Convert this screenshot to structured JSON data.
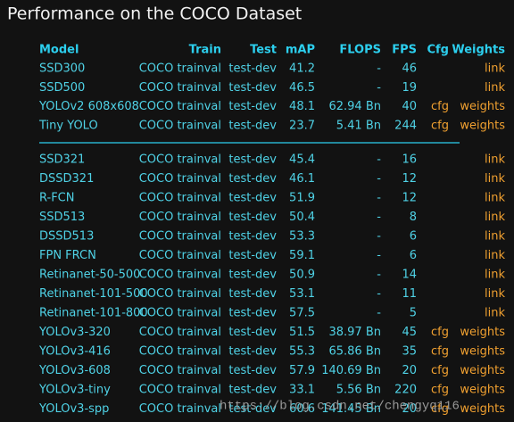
{
  "title": "Performance on the COCO Dataset",
  "table": {
    "header": [
      "Model",
      "Train",
      "Test",
      "mAP",
      "FLOPS",
      "FPS",
      "Cfg",
      "Weights"
    ],
    "groups": [
      {
        "rows": [
          {
            "model": "SSD300",
            "train": "COCO trainval",
            "test": "test-dev",
            "map": 41.2,
            "flops": "-",
            "fps": 46,
            "weights": "link"
          },
          {
            "model": "SSD500",
            "train": "COCO trainval",
            "test": "test-dev",
            "map": 46.5,
            "flops": "-",
            "fps": 19,
            "weights": "link"
          },
          {
            "model": "YOLOv2 608x608",
            "train": "COCO trainval",
            "test": "test-dev",
            "map": 48.1,
            "flops": "62.94 Bn",
            "fps": 40,
            "cfg": "cfg",
            "weights": "weights"
          },
          {
            "model": "Tiny YOLO",
            "train": "COCO trainval",
            "test": "test-dev",
            "map": 23.7,
            "flops": "5.41 Bn",
            "fps": 244,
            "cfg": "cfg",
            "weights": "weights"
          }
        ]
      },
      {
        "rows": [
          {
            "model": "SSD321",
            "train": "COCO trainval",
            "test": "test-dev",
            "map": 45.4,
            "flops": "-",
            "fps": 16,
            "weights": "link"
          },
          {
            "model": "DSSD321",
            "train": "COCO trainval",
            "test": "test-dev",
            "map": 46.1,
            "flops": "-",
            "fps": 12,
            "weights": "link"
          },
          {
            "model": "R-FCN",
            "train": "COCO trainval",
            "test": "test-dev",
            "map": 51.9,
            "flops": "-",
            "fps": 12,
            "weights": "link"
          },
          {
            "model": "SSD513",
            "train": "COCO trainval",
            "test": "test-dev",
            "map": 50.4,
            "flops": "-",
            "fps": 8,
            "weights": "link"
          },
          {
            "model": "DSSD513",
            "train": "COCO trainval",
            "test": "test-dev",
            "map": 53.3,
            "flops": "-",
            "fps": 6,
            "weights": "link"
          },
          {
            "model": "FPN FRCN",
            "train": "COCO trainval",
            "test": "test-dev",
            "map": 59.1,
            "flops": "-",
            "fps": 6,
            "weights": "link"
          },
          {
            "model": "Retinanet-50-500",
            "train": "COCO trainval",
            "test": "test-dev",
            "map": 50.9,
            "flops": "-",
            "fps": 14,
            "weights": "link"
          },
          {
            "model": "Retinanet-101-500",
            "train": "COCO trainval",
            "test": "test-dev",
            "map": 53.1,
            "flops": "-",
            "fps": 11,
            "weights": "link"
          },
          {
            "model": "Retinanet-101-800",
            "train": "COCO trainval",
            "test": "test-dev",
            "map": 57.5,
            "flops": "-",
            "fps": 5,
            "weights": "link"
          },
          {
            "model": "YOLOv3-320",
            "train": "COCO trainval",
            "test": "test-dev",
            "map": 51.5,
            "flops": "38.97 Bn",
            "fps": 45,
            "cfg": "cfg",
            "weights": "weights"
          },
          {
            "model": "YOLOv3-416",
            "train": "COCO trainval",
            "test": "test-dev",
            "map": 55.3,
            "flops": "65.86 Bn",
            "fps": 35,
            "cfg": "cfg",
            "weights": "weights"
          },
          {
            "model": "YOLOv3-608",
            "train": "COCO trainval",
            "test": "test-dev",
            "map": 57.9,
            "flops": "140.69 Bn",
            "fps": 20,
            "cfg": "cfg",
            "weights": "weights"
          },
          {
            "model": "YOLOv3-tiny",
            "train": "COCO trainval",
            "test": "test-dev",
            "map": 33.1,
            "flops": "5.56 Bn",
            "fps": 220,
            "cfg": "cfg",
            "weights": "weights"
          },
          {
            "model": "YOLOv3-spp",
            "train": "COCO trainval",
            "test": "test-dev",
            "map": 60.6,
            "flops": "141.45 Bn",
            "fps": 20,
            "cfg": "cfg",
            "weights": "weights"
          }
        ]
      }
    ]
  },
  "watermark": "https://blog.csdn.net/chengyq116"
}
